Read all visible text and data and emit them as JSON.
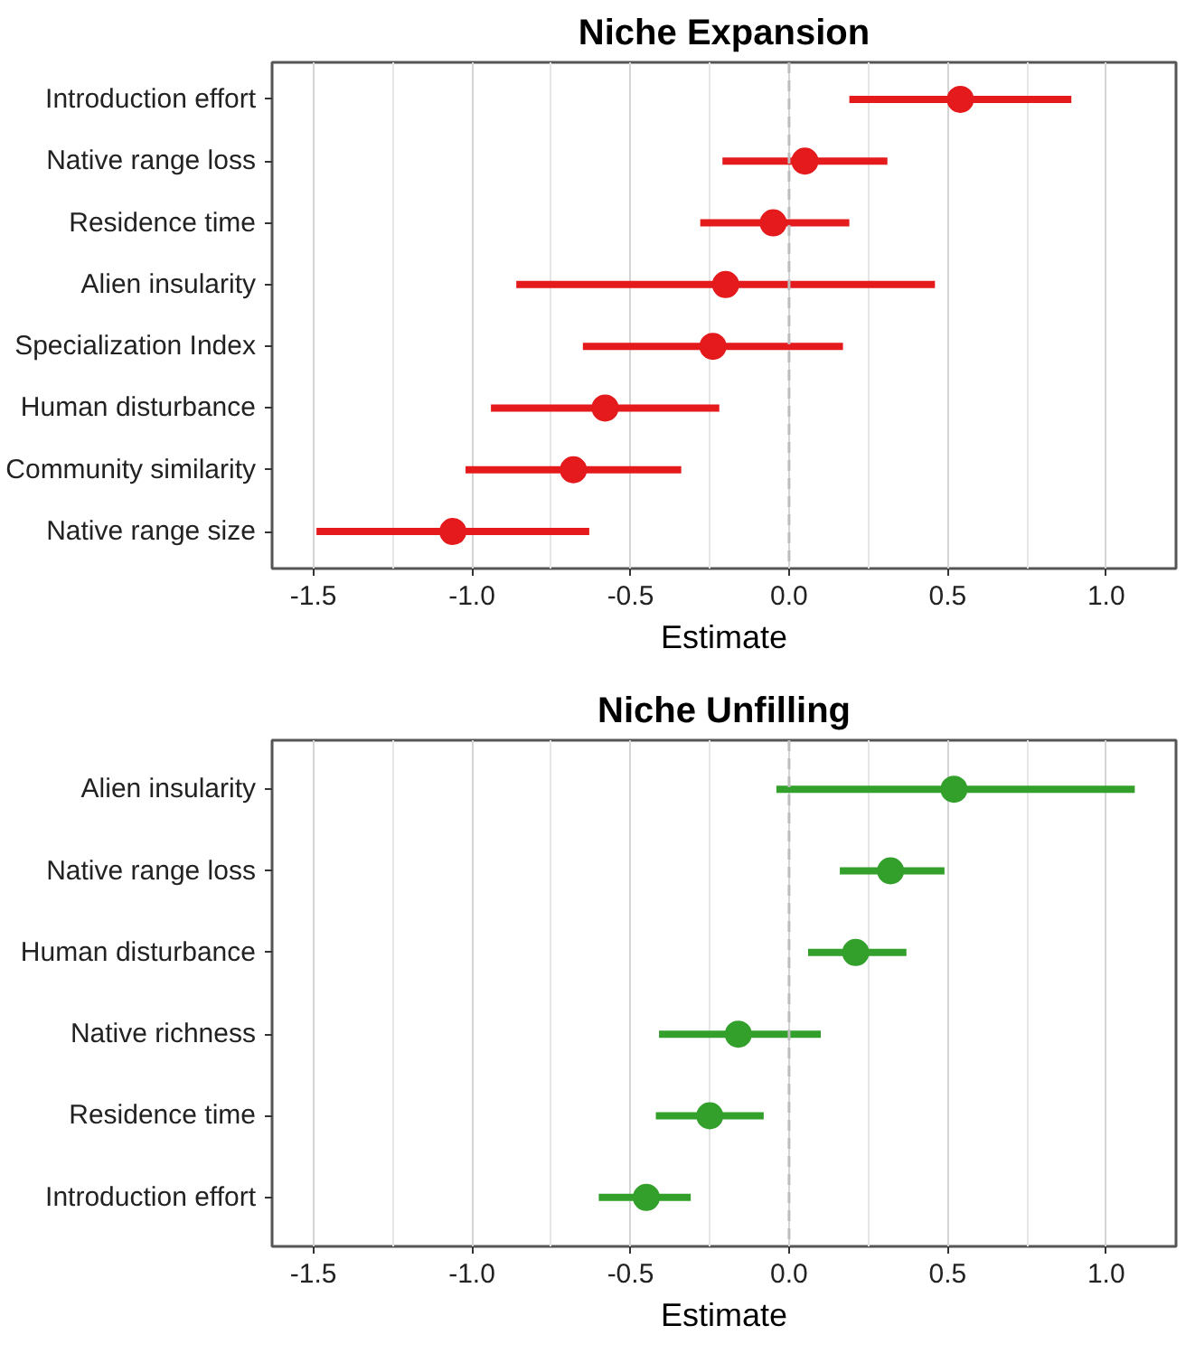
{
  "chart_data": [
    {
      "type": "scatter",
      "orientation": "horizontal",
      "title": "Niche Expansion",
      "xlabel": "Estimate",
      "categories": [
        "Introduction effort",
        "Native range loss",
        "Residence time",
        "Alien insularity",
        "Specialization Index",
        "Human disturbance",
        "Community similarity",
        "Native range size"
      ],
      "series": [
        {
          "color": "#e41a1c",
          "values": [
            0.54,
            0.05,
            -0.05,
            -0.2,
            -0.24,
            -0.58,
            -0.68,
            -1.06
          ],
          "errors": [
            [
              0.19,
              0.89
            ],
            [
              -0.21,
              0.31
            ],
            [
              -0.28,
              0.19
            ],
            [
              -0.86,
              0.46
            ],
            [
              -0.65,
              0.17
            ],
            [
              -0.94,
              -0.22
            ],
            [
              -1.02,
              -0.34
            ],
            [
              -1.49,
              -0.63
            ]
          ]
        }
      ],
      "xlim": [
        -1.63,
        1.22
      ],
      "xticks": [
        -1.5,
        {
          "value": -1,
          "label": "-1.0"
        },
        -0.5,
        {
          "value": 0,
          "label": "0.0"
        },
        0.5,
        {
          "value": 1,
          "label": "1.0"
        }
      ],
      "grid": "x",
      "marker": "circle",
      "ref_lines": [
        {
          "axis": "x",
          "value": 0,
          "color": "#bdbdbd",
          "line_style": "dashed"
        }
      ]
    },
    {
      "type": "scatter",
      "orientation": "horizontal",
      "title": "Niche Unfilling",
      "xlabel": "Estimate",
      "categories": [
        "Alien insularity",
        "Native range loss",
        "Human disturbance",
        "Native richness",
        "Residence time",
        "Introduction effort"
      ],
      "series": [
        {
          "color": "#33a02c",
          "values": [
            0.52,
            0.32,
            0.21,
            -0.16,
            -0.25,
            -0.45
          ],
          "errors": [
            [
              -0.04,
              1.09
            ],
            [
              0.16,
              0.49
            ],
            [
              0.06,
              0.37
            ],
            [
              -0.41,
              0.1
            ],
            [
              -0.42,
              -0.08
            ],
            [
              -0.6,
              -0.31
            ]
          ]
        }
      ],
      "xlim": [
        -1.63,
        1.22
      ],
      "xticks": [
        -1.5,
        {
          "value": -1,
          "label": "-1.0"
        },
        -0.5,
        {
          "value": 0,
          "label": "0.0"
        },
        0.5,
        {
          "value": 1,
          "label": "1.0"
        }
      ],
      "grid": "x",
      "marker": "circle",
      "ref_lines": [
        {
          "axis": "x",
          "value": 0,
          "color": "#bdbdbd",
          "line_style": "dashed"
        }
      ]
    }
  ]
}
